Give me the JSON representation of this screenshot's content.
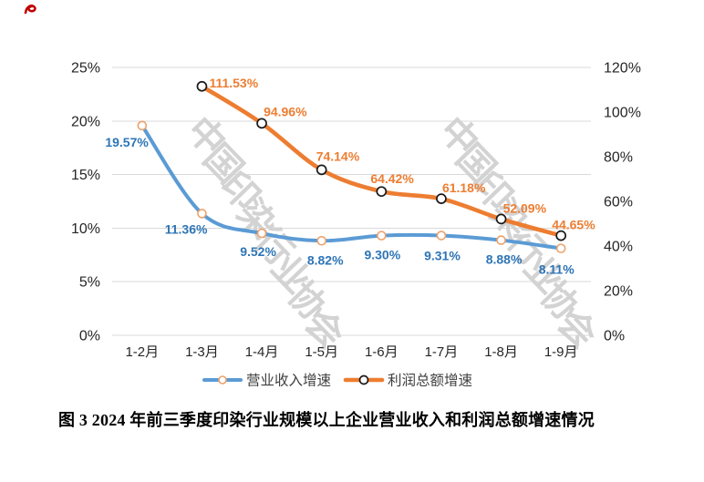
{
  "caption": "图 3 2024 年前三季度印染行业规模以上企业营业收入和利润总额增速情况",
  "watermark": {
    "text": "中国印染行业协会",
    "color": "#d3d3d3"
  },
  "colors": {
    "revenue_line": "#5B9BD5",
    "revenue_label": "#2E75B6",
    "revenue_marker_stroke": "#EDA26B",
    "profit_line": "#ED7D31",
    "profit_label": "#ED7D31",
    "profit_marker_stroke": "#1a1a1a",
    "gridline": "#D9D9D9",
    "tick_text": "#262626",
    "legend_text": "#404040",
    "annotation": "#C00000"
  },
  "chart_data": {
    "type": "line",
    "title": "图 3 2024 年前三季度印染行业规模以上企业营业收入和利润总额增速情况",
    "categories": [
      "1-2月",
      "1-3月",
      "1-4月",
      "1-5月",
      "1-6月",
      "1-7月",
      "1-8月",
      "1-9月"
    ],
    "series": [
      {
        "name": "营业收入增速",
        "axis": "left",
        "values": [
          19.57,
          11.36,
          9.52,
          8.82,
          9.3,
          9.31,
          8.88,
          8.11
        ],
        "labels": [
          "19.57%",
          "11.36%",
          "9.52%",
          "8.82%",
          "9.30%",
          "9.31%",
          "8.88%",
          "8.11%"
        ]
      },
      {
        "name": "利润总额增速",
        "axis": "right",
        "values": [
          null,
          111.53,
          94.96,
          74.14,
          64.42,
          61.18,
          52.09,
          44.65
        ],
        "labels": [
          null,
          "111.53%",
          "94.96%",
          "74.14%",
          "64.42%",
          "61.18%",
          "52.09%",
          "44.65%"
        ]
      }
    ],
    "left_axis": {
      "min": 0,
      "max": 25,
      "ticks": [
        "25%",
        "20%",
        "15%",
        "10%",
        "5%",
        "0%"
      ]
    },
    "right_axis": {
      "min": 0,
      "max": 120,
      "ticks": [
        "120%",
        "100%",
        "80%",
        "60%",
        "40%",
        "20%",
        "0%"
      ]
    },
    "grid": true,
    "data_labels": true,
    "legend_position": "bottom",
    "xlabel": "",
    "ylabel": ""
  }
}
